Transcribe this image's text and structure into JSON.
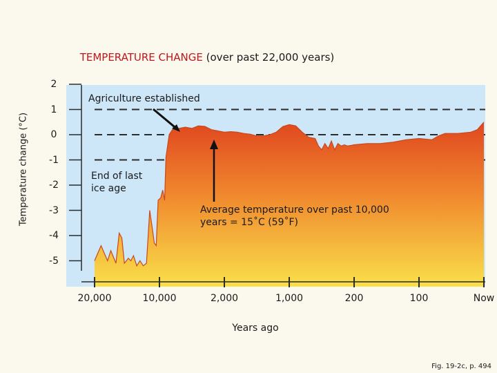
{
  "title": {
    "main": "TEMPERATURE CHANGE",
    "sub": "(over past 22,000 years)"
  },
  "caption": "Fig. 19-2c, p. 494",
  "colors": {
    "background": "#fbf8ee",
    "plot": "#cde6f8",
    "fill_top": "#e0471f",
    "fill_bottom": "#f9e04a",
    "title_red": "#c0161b"
  },
  "chart_data": {
    "type": "area",
    "title": "TEMPERATURE CHANGE (over past 22,000 years)",
    "xlabel": "Years ago",
    "ylabel": "Temperature change (°C)",
    "x_tick_labels": [
      "20,000",
      "10,000",
      "2,000",
      "1,000",
      "200",
      "100",
      "Now"
    ],
    "y_ticks": [
      2,
      1,
      0,
      -1,
      -2,
      -3,
      -4,
      -5
    ],
    "y_tick_labels": [
      "2",
      "1",
      "0",
      "-1",
      "-2",
      "-3",
      "-4",
      "-5"
    ],
    "ylim": [
      -6,
      2.3
    ],
    "reference_lines": [
      1,
      0,
      -1
    ],
    "note": "x axis is non-linear; x values are positions in tick-label units (0 = 20,000 years ago, 6 = Now)",
    "series": [
      {
        "name": "Temperature change",
        "x": [
          0,
          0.1,
          0.2,
          0.25,
          0.33,
          0.38,
          0.42,
          0.46,
          0.52,
          0.56,
          0.6,
          0.65,
          0.7,
          0.75,
          0.8,
          0.85,
          0.9,
          0.92,
          0.95,
          0.98,
          1.02,
          1.05,
          1.08,
          1.1,
          1.15,
          1.2,
          1.3,
          1.4,
          1.5,
          1.6,
          1.7,
          1.8,
          1.9,
          2.0,
          2.1,
          2.2,
          2.3,
          2.4,
          2.5,
          2.6,
          2.7,
          2.8,
          2.9,
          3.0,
          3.1,
          3.2,
          3.3,
          3.4,
          3.45,
          3.5,
          3.55,
          3.6,
          3.65,
          3.7,
          3.75,
          3.8,
          3.85,
          3.9,
          4.0,
          4.2,
          4.4,
          4.6,
          4.8,
          5.0,
          5.2,
          5.3,
          5.4,
          5.6,
          5.8,
          5.9,
          6.0
        ],
        "values": [
          -5.0,
          -4.4,
          -5.0,
          -4.6,
          -5.1,
          -3.9,
          -4.1,
          -5.1,
          -4.9,
          -5.0,
          -4.8,
          -5.2,
          -5.0,
          -5.2,
          -5.1,
          -3.0,
          -3.9,
          -4.3,
          -4.4,
          -2.6,
          -2.5,
          -2.2,
          -2.6,
          -0.9,
          0.0,
          0.2,
          0.25,
          0.3,
          0.25,
          0.35,
          0.33,
          0.2,
          0.15,
          0.1,
          0.12,
          0.1,
          0.05,
          0.02,
          -0.05,
          -0.05,
          0.0,
          0.1,
          0.32,
          0.4,
          0.35,
          0.1,
          -0.1,
          -0.15,
          -0.45,
          -0.6,
          -0.35,
          -0.55,
          -0.25,
          -0.6,
          -0.35,
          -0.45,
          -0.4,
          -0.45,
          -0.4,
          -0.35,
          -0.35,
          -0.3,
          -0.2,
          -0.15,
          -0.2,
          -0.05,
          0.05,
          0.05,
          0.1,
          0.2,
          0.5
        ]
      }
    ],
    "annotations": {
      "agriculture": "Agriculture established",
      "ice_age_line1": "End of last",
      "ice_age_line2": "ice age",
      "avg_line1": "Average temperature over past 10,000",
      "avg_line2": "years = 15˚C (59˚F)"
    }
  }
}
